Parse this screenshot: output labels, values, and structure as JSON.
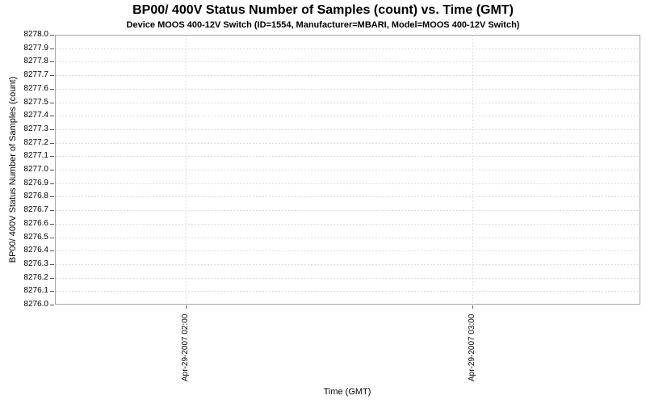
{
  "title": "BP00/ 400V Status Number of Samples (count) vs. Time (GMT)",
  "subtitle": "Device MOOS 400-12V Switch (ID=1554, Manufacturer=MBARI, Model=MOOS 400-12V Switch)",
  "axes": {
    "x": {
      "label": "Time (GMT)",
      "ticks": [
        "Apr-29-2007 02:00",
        "Apr-29-2007 03:00"
      ]
    },
    "y": {
      "label": "BP00/ 400V Status Number of Samples (count)",
      "ticks": [
        "8278.0",
        "8277.9",
        "8277.8",
        "8277.7",
        "8277.6",
        "8277.5",
        "8277.4",
        "8277.3",
        "8277.2",
        "8277.1",
        "8277.0",
        "8276.9",
        "8276.8",
        "8276.7",
        "8276.6",
        "8276.5",
        "8276.4",
        "8276.3",
        "8276.2",
        "8276.1",
        "8276.0"
      ]
    }
  },
  "chart_data": {
    "type": "line",
    "title": "BP00/ 400V Status Number of Samples (count) vs. Time (GMT)",
    "subtitle": "Device MOOS 400-12V Switch (ID=1554, Manufacturer=MBARI, Model=MOOS 400-12V Switch)",
    "xlabel": "Time (GMT)",
    "ylabel": "BP00/ 400V Status Number of Samples (count)",
    "x_ticks": [
      "Apr-29-2007 02:00",
      "Apr-29-2007 03:00"
    ],
    "y_ticks": [
      8276.0,
      8276.1,
      8276.2,
      8276.3,
      8276.4,
      8276.5,
      8276.6,
      8276.7,
      8276.8,
      8276.9,
      8277.0,
      8277.1,
      8277.2,
      8277.3,
      8277.4,
      8277.5,
      8277.6,
      8277.7,
      8277.8,
      8277.9,
      8278.0
    ],
    "ylim": [
      8276.0,
      8278.0
    ],
    "y_tick_step": 0.1,
    "grid": "dashed gridlines on both axes",
    "legend": "none",
    "series": []
  },
  "colors": {
    "background": "#ffffff",
    "text": "#000000",
    "plot_border": "#a6a6a6",
    "gridline": "#dcdcdc",
    "tick_mark": "#555555"
  }
}
